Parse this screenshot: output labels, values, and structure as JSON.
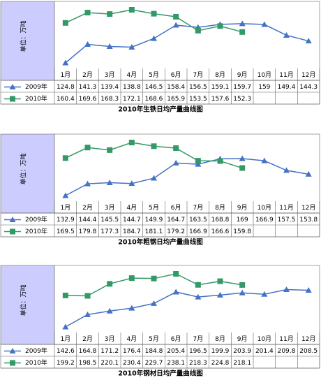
{
  "chart_data": [
    {
      "type": "line",
      "title": "2010年生铁日均产量曲线图",
      "unit_label": "单位：万吨",
      "categories": [
        "1月",
        "2月",
        "3月",
        "4月",
        "5月",
        "6月",
        "7月",
        "8月",
        "9月",
        "10月",
        "11月",
        "12月"
      ],
      "series": [
        {
          "name": "2009年",
          "color": "#4472c4",
          "marker": "triangle",
          "values": [
            124.8,
            141.3,
            139.4,
            138.8,
            146.5,
            158.4,
            156.5,
            159.1,
            159.7,
            159.0,
            149.4,
            144.3
          ]
        },
        {
          "name": "2010年",
          "color": "#339966",
          "marker": "square",
          "values": [
            160.4,
            169.6,
            168.3,
            172.1,
            168.6,
            165.9,
            153.5,
            157.6,
            152.3,
            null,
            null,
            null
          ]
        }
      ]
    },
    {
      "type": "line",
      "title": "2010年粗钢日均产量曲线图",
      "unit_label": "单位：万吨",
      "categories": [
        "1月",
        "2月",
        "3月",
        "4月",
        "5月",
        "6月",
        "7月",
        "8月",
        "9月",
        "10月",
        "11月",
        "12月"
      ],
      "series": [
        {
          "name": "2009年",
          "color": "#4472c4",
          "marker": "triangle",
          "values": [
            132.9,
            144.4,
            145.5,
            144.7,
            149.9,
            164.7,
            163.5,
            168.8,
            169.0,
            166.9,
            157.5,
            153.8
          ]
        },
        {
          "name": "2010年",
          "color": "#339966",
          "marker": "square",
          "values": [
            169.5,
            179.8,
            177.3,
            184.7,
            181.1,
            179.2,
            166.9,
            166.6,
            159.8,
            null,
            null,
            null
          ]
        }
      ]
    },
    {
      "type": "line",
      "title": "2010年钢材日均产量曲线图",
      "unit_label": "单位：万吨",
      "categories": [
        "1月",
        "2月",
        "3月",
        "4月",
        "5月",
        "6月",
        "7月",
        "8月",
        "9月",
        "10月",
        "11月",
        "12月"
      ],
      "series": [
        {
          "name": "2009年",
          "color": "#4472c4",
          "marker": "triangle",
          "values": [
            142.6,
            164.8,
            171.2,
            176.4,
            184.8,
            205.4,
            196.5,
            199.9,
            203.9,
            201.4,
            209.8,
            208.5
          ]
        },
        {
          "name": "2010年",
          "color": "#339966",
          "marker": "square",
          "values": [
            199.2,
            198.5,
            220.1,
            230.4,
            229.7,
            238.1,
            218.3,
            224.8,
            218.1,
            null,
            null,
            null
          ]
        }
      ]
    }
  ]
}
